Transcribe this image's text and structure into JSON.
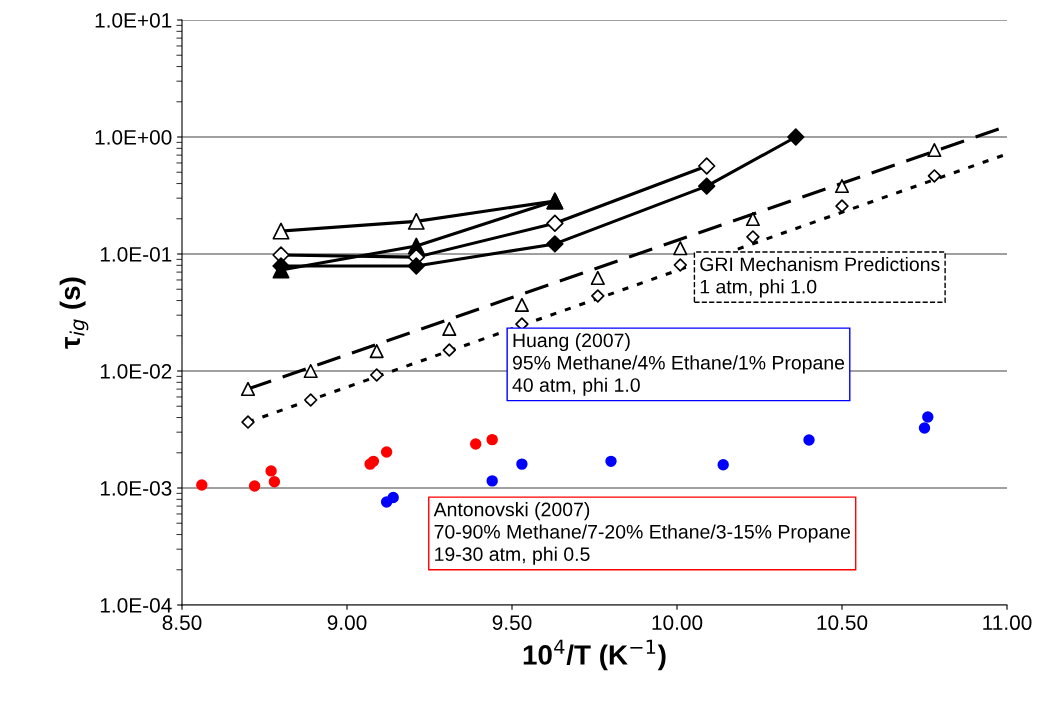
{
  "chart_data": {
    "type": "line",
    "xlabel": "10$^{4}$/T (K$^{−1}$)",
    "ylabel": "τ$_{ig}$ (s)",
    "log": "y",
    "grid": "y",
    "xlim": [
      8.5,
      11.0
    ],
    "xticks": [
      {
        "value": 8.5,
        "label": "8.50"
      },
      {
        "value": 9.0,
        "label": "9.00"
      },
      {
        "value": 9.5,
        "label": "9.50"
      },
      {
        "value": 10.0,
        "label": "10.00"
      },
      {
        "value": 10.5,
        "label": "10.50"
      },
      {
        "value": 11.0,
        "label": "11.00"
      }
    ],
    "ylim": [
      0.0001,
      10
    ],
    "yticks": [
      {
        "value": 0.0001,
        "label": "1.0E-04"
      },
      {
        "value": 0.001,
        "label": "1.0E-03"
      },
      {
        "value": 0.01,
        "label": "1.0E-02"
      },
      {
        "value": 0.1,
        "label": "1.0E-01"
      },
      {
        "value": 1,
        "label": "1.0E+00"
      },
      {
        "value": 10,
        "label": "1.0E+01"
      }
    ],
    "series": [
      {
        "color": "#000000",
        "colors": [
          "#ffffff",
          "#ffffff",
          "#ffffff"
        ],
        "marker": "triangle",
        "line_style": "solid",
        "x": [
          8.8,
          9.21,
          9.63
        ],
        "values": [
          0.157,
          0.19,
          0.284
        ]
      },
      {
        "color": "#000000",
        "marker": "triangle",
        "line_style": "solid",
        "x": [
          8.8,
          9.21,
          9.63
        ],
        "values": [
          0.073,
          0.117,
          0.284
        ]
      },
      {
        "color": "#000000",
        "colors": [
          "#ffffff",
          "#ffffff",
          "#ffffff",
          "#ffffff"
        ],
        "marker": "diamond",
        "line_style": "solid",
        "x": [
          8.8,
          9.21,
          9.63,
          10.09
        ],
        "values": [
          0.098,
          0.094,
          0.183,
          0.565
        ]
      },
      {
        "color": "#000000",
        "marker": "diamond",
        "line_style": "solid",
        "x": [
          8.8,
          9.21,
          9.63,
          10.09,
          10.36
        ],
        "values": [
          0.079,
          0.079,
          0.122,
          0.38,
          1.0
        ]
      },
      {
        "type": "scatter",
        "color": "#000000",
        "colors": [
          "#ffffff",
          "#ffffff",
          "#ffffff",
          "#ffffff",
          "#ffffff",
          "#ffffff",
          "#ffffff",
          "#ffffff",
          "#ffffff",
          "#ffffff"
        ],
        "marker": "triangle",
        "x": [
          8.7,
          8.89,
          9.09,
          9.31,
          9.53,
          9.76,
          10.01,
          10.23,
          10.5,
          10.78
        ],
        "values": [
          0.00702,
          0.01,
          0.0148,
          0.0229,
          0.0367,
          0.0624,
          0.112,
          0.199,
          0.381,
          0.774
        ]
      },
      {
        "color": "#000000",
        "marker": "none",
        "line_style": "dashed",
        "x": [
          8.7,
          11.0
        ],
        "values": [
          0.00702,
          1.24
        ]
      },
      {
        "type": "scatter",
        "color": "#000000",
        "colors": [
          "#ffffff",
          "#ffffff",
          "#ffffff",
          "#ffffff",
          "#ffffff",
          "#ffffff",
          "#ffffff",
          "#ffffff",
          "#ffffff",
          "#ffffff"
        ],
        "marker": "diamond",
        "x": [
          8.7,
          8.89,
          9.09,
          9.31,
          9.53,
          9.76,
          10.01,
          10.23,
          10.5,
          10.78
        ],
        "values": [
          0.00366,
          0.00565,
          0.00924,
          0.0151,
          0.0252,
          0.0438,
          0.0805,
          0.14,
          0.257,
          0.465
        ]
      },
      {
        "color": "#000000",
        "marker": "none",
        "line_style": "dotted",
        "x": [
          8.7,
          11.0
        ],
        "values": [
          0.00366,
          0.716
        ]
      },
      {
        "type": "scatter",
        "color": "#ff0000",
        "marker": "circle",
        "x": [
          8.56,
          8.72,
          8.77,
          8.78,
          9.07,
          9.08,
          9.12,
          9.39,
          9.44
        ],
        "values": [
          0.00106,
          0.00104,
          0.0014,
          0.00113,
          0.0016,
          0.00169,
          0.00203,
          0.00238,
          0.00259
        ]
      },
      {
        "type": "scatter",
        "color": "#0000ff",
        "marker": "circle",
        "x": [
          9.12,
          9.14,
          9.44,
          9.53,
          9.8,
          10.14,
          10.4,
          10.75,
          10.76
        ],
        "values": [
          0.00076,
          0.00083,
          0.00115,
          0.0016,
          0.00169,
          0.00158,
          0.00257,
          0.00326,
          0.00404
        ]
      }
    ],
    "annotations": [
      "GRI Mechanism Predictions\n1 atm, phi 1.0",
      "Huang (2007)\n95% Methane/4% Ethane/1% Propane\n40 atm, phi 1.0",
      "Antonovski (2007)\n70-90% Methane/7-20% Ethane/3-15% Propane\n19-30 atm, phi 0.5"
    ]
  }
}
